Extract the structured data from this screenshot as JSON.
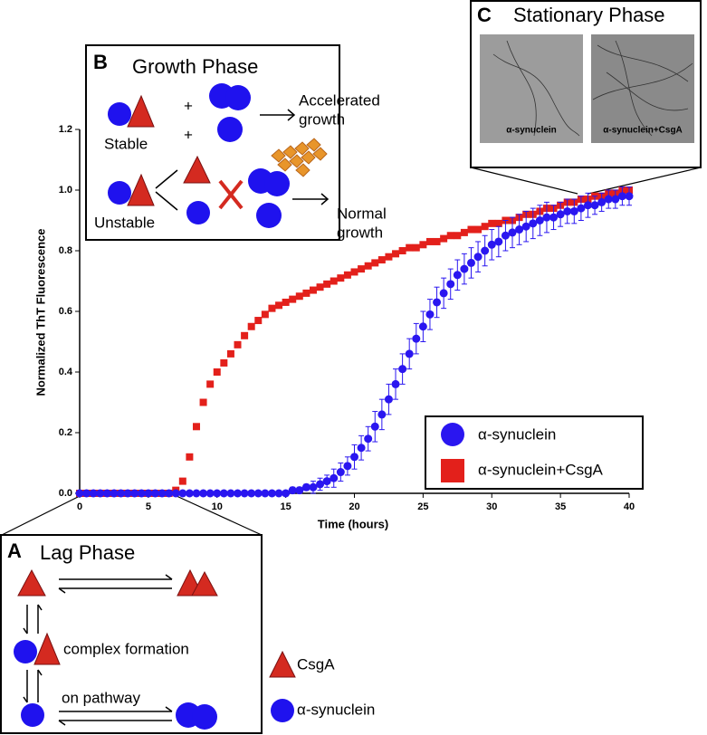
{
  "chart_data": {
    "type": "scatter",
    "xlabel": "Time (hours)",
    "ylabel": "Normalized ThT Fluorescence",
    "x": [
      0,
      0.5,
      1,
      1.5,
      2,
      2.5,
      3,
      3.5,
      4,
      4.5,
      5,
      5.5,
      6,
      6.5,
      7,
      7.5,
      8,
      8.5,
      9,
      9.5,
      10,
      10.5,
      11,
      11.5,
      12,
      12.5,
      13,
      13.5,
      14,
      14.5,
      15,
      15.5,
      16,
      16.5,
      17,
      17.5,
      18,
      18.5,
      19,
      19.5,
      20,
      20.5,
      21,
      21.5,
      22,
      22.5,
      23,
      23.5,
      24,
      24.5,
      25,
      25.5,
      26,
      26.5,
      27,
      27.5,
      28,
      28.5,
      29,
      29.5,
      30,
      30.5,
      31,
      31.5,
      32,
      32.5,
      33,
      33.5,
      34,
      34.5,
      35,
      35.5,
      36,
      36.5,
      37,
      37.5,
      38,
      38.5,
      39,
      39.5,
      40
    ],
    "series": [
      {
        "name": "α-synuclein+CsgA",
        "color": "#e3201b",
        "marker": "square",
        "values": [
          0,
          0,
          0,
          0,
          0,
          0,
          0,
          0,
          0,
          0,
          0,
          0,
          0,
          0,
          0.01,
          0.04,
          0.12,
          0.22,
          0.3,
          0.36,
          0.4,
          0.43,
          0.46,
          0.49,
          0.52,
          0.55,
          0.57,
          0.59,
          0.61,
          0.62,
          0.63,
          0.64,
          0.65,
          0.66,
          0.67,
          0.68,
          0.69,
          0.7,
          0.71,
          0.72,
          0.73,
          0.74,
          0.75,
          0.76,
          0.77,
          0.78,
          0.79,
          0.8,
          0.81,
          0.81,
          0.82,
          0.83,
          0.83,
          0.84,
          0.85,
          0.85,
          0.86,
          0.87,
          0.87,
          0.88,
          0.89,
          0.89,
          0.9,
          0.9,
          0.91,
          0.92,
          0.92,
          0.93,
          0.94,
          0.94,
          0.95,
          0.96,
          0.96,
          0.97,
          0.97,
          0.98,
          0.98,
          0.99,
          0.99,
          1,
          1
        ]
      },
      {
        "name": "α-synuclein",
        "color": "#2a16f0",
        "marker": "circle",
        "values": [
          0,
          0,
          0,
          0,
          0,
          0,
          0,
          0,
          0,
          0,
          0,
          0,
          0,
          0,
          0,
          0,
          0,
          0,
          0,
          0,
          0,
          0,
          0,
          0,
          0,
          0,
          0,
          0,
          0,
          0,
          0,
          0.01,
          0.01,
          0.02,
          0.02,
          0.03,
          0.04,
          0.05,
          0.07,
          0.09,
          0.12,
          0.15,
          0.18,
          0.22,
          0.26,
          0.31,
          0.36,
          0.41,
          0.46,
          0.51,
          0.55,
          0.59,
          0.63,
          0.66,
          0.69,
          0.72,
          0.74,
          0.76,
          0.78,
          0.8,
          0.82,
          0.83,
          0.85,
          0.86,
          0.87,
          0.88,
          0.89,
          0.9,
          0.91,
          0.91,
          0.92,
          0.93,
          0.93,
          0.94,
          0.95,
          0.95,
          0.96,
          0.97,
          0.97,
          0.98,
          0.98
        ],
        "errors": [
          0,
          0,
          0,
          0,
          0,
          0,
          0,
          0,
          0,
          0,
          0,
          0,
          0,
          0,
          0,
          0,
          0,
          0,
          0,
          0,
          0,
          0,
          0,
          0,
          0,
          0,
          0,
          0,
          0,
          0,
          0,
          0.01,
          0.01,
          0.01,
          0.02,
          0.02,
          0.02,
          0.03,
          0.03,
          0.03,
          0.04,
          0.04,
          0.04,
          0.05,
          0.05,
          0.05,
          0.05,
          0.05,
          0.05,
          0.05,
          0.05,
          0.05,
          0.05,
          0.05,
          0.05,
          0.05,
          0.05,
          0.05,
          0.05,
          0.05,
          0.05,
          0.05,
          0.05,
          0.05,
          0.05,
          0.05,
          0.05,
          0.05,
          0.05,
          0.04,
          0.04,
          0.04,
          0.04,
          0.04,
          0.04,
          0.03,
          0.03,
          0.03,
          0.03,
          0.03,
          0.03
        ]
      }
    ],
    "xlim": [
      0,
      40
    ],
    "xticks": [
      0,
      5,
      10,
      15,
      20,
      25,
      30,
      35,
      40
    ],
    "ylim": [
      0,
      1.2
    ],
    "yticks": [
      {
        "value": 0,
        "label": "0.0"
      },
      0.2,
      0.4,
      0.6,
      0.8,
      {
        "value": 1,
        "label": "1.0"
      },
      1.2
    ]
  },
  "panels": {
    "growth": {
      "letter": "B",
      "title": "Growth Phase",
      "stable": "Stable",
      "unstable": "Unstable",
      "accelerated": [
        "Accelerated",
        "growth"
      ],
      "normal": [
        "Normal",
        "growth"
      ]
    },
    "stationary": {
      "letter": "C",
      "title": "Stationary Phase",
      "image_labels": [
        "α-synuclein",
        "α-synuclein+CsgA"
      ]
    },
    "lag": {
      "letter": "A",
      "title": "Lag Phase",
      "complex": "complex formation",
      "pathway": "on pathway",
      "key": [
        "CsgA",
        "α-synuclein"
      ]
    }
  }
}
